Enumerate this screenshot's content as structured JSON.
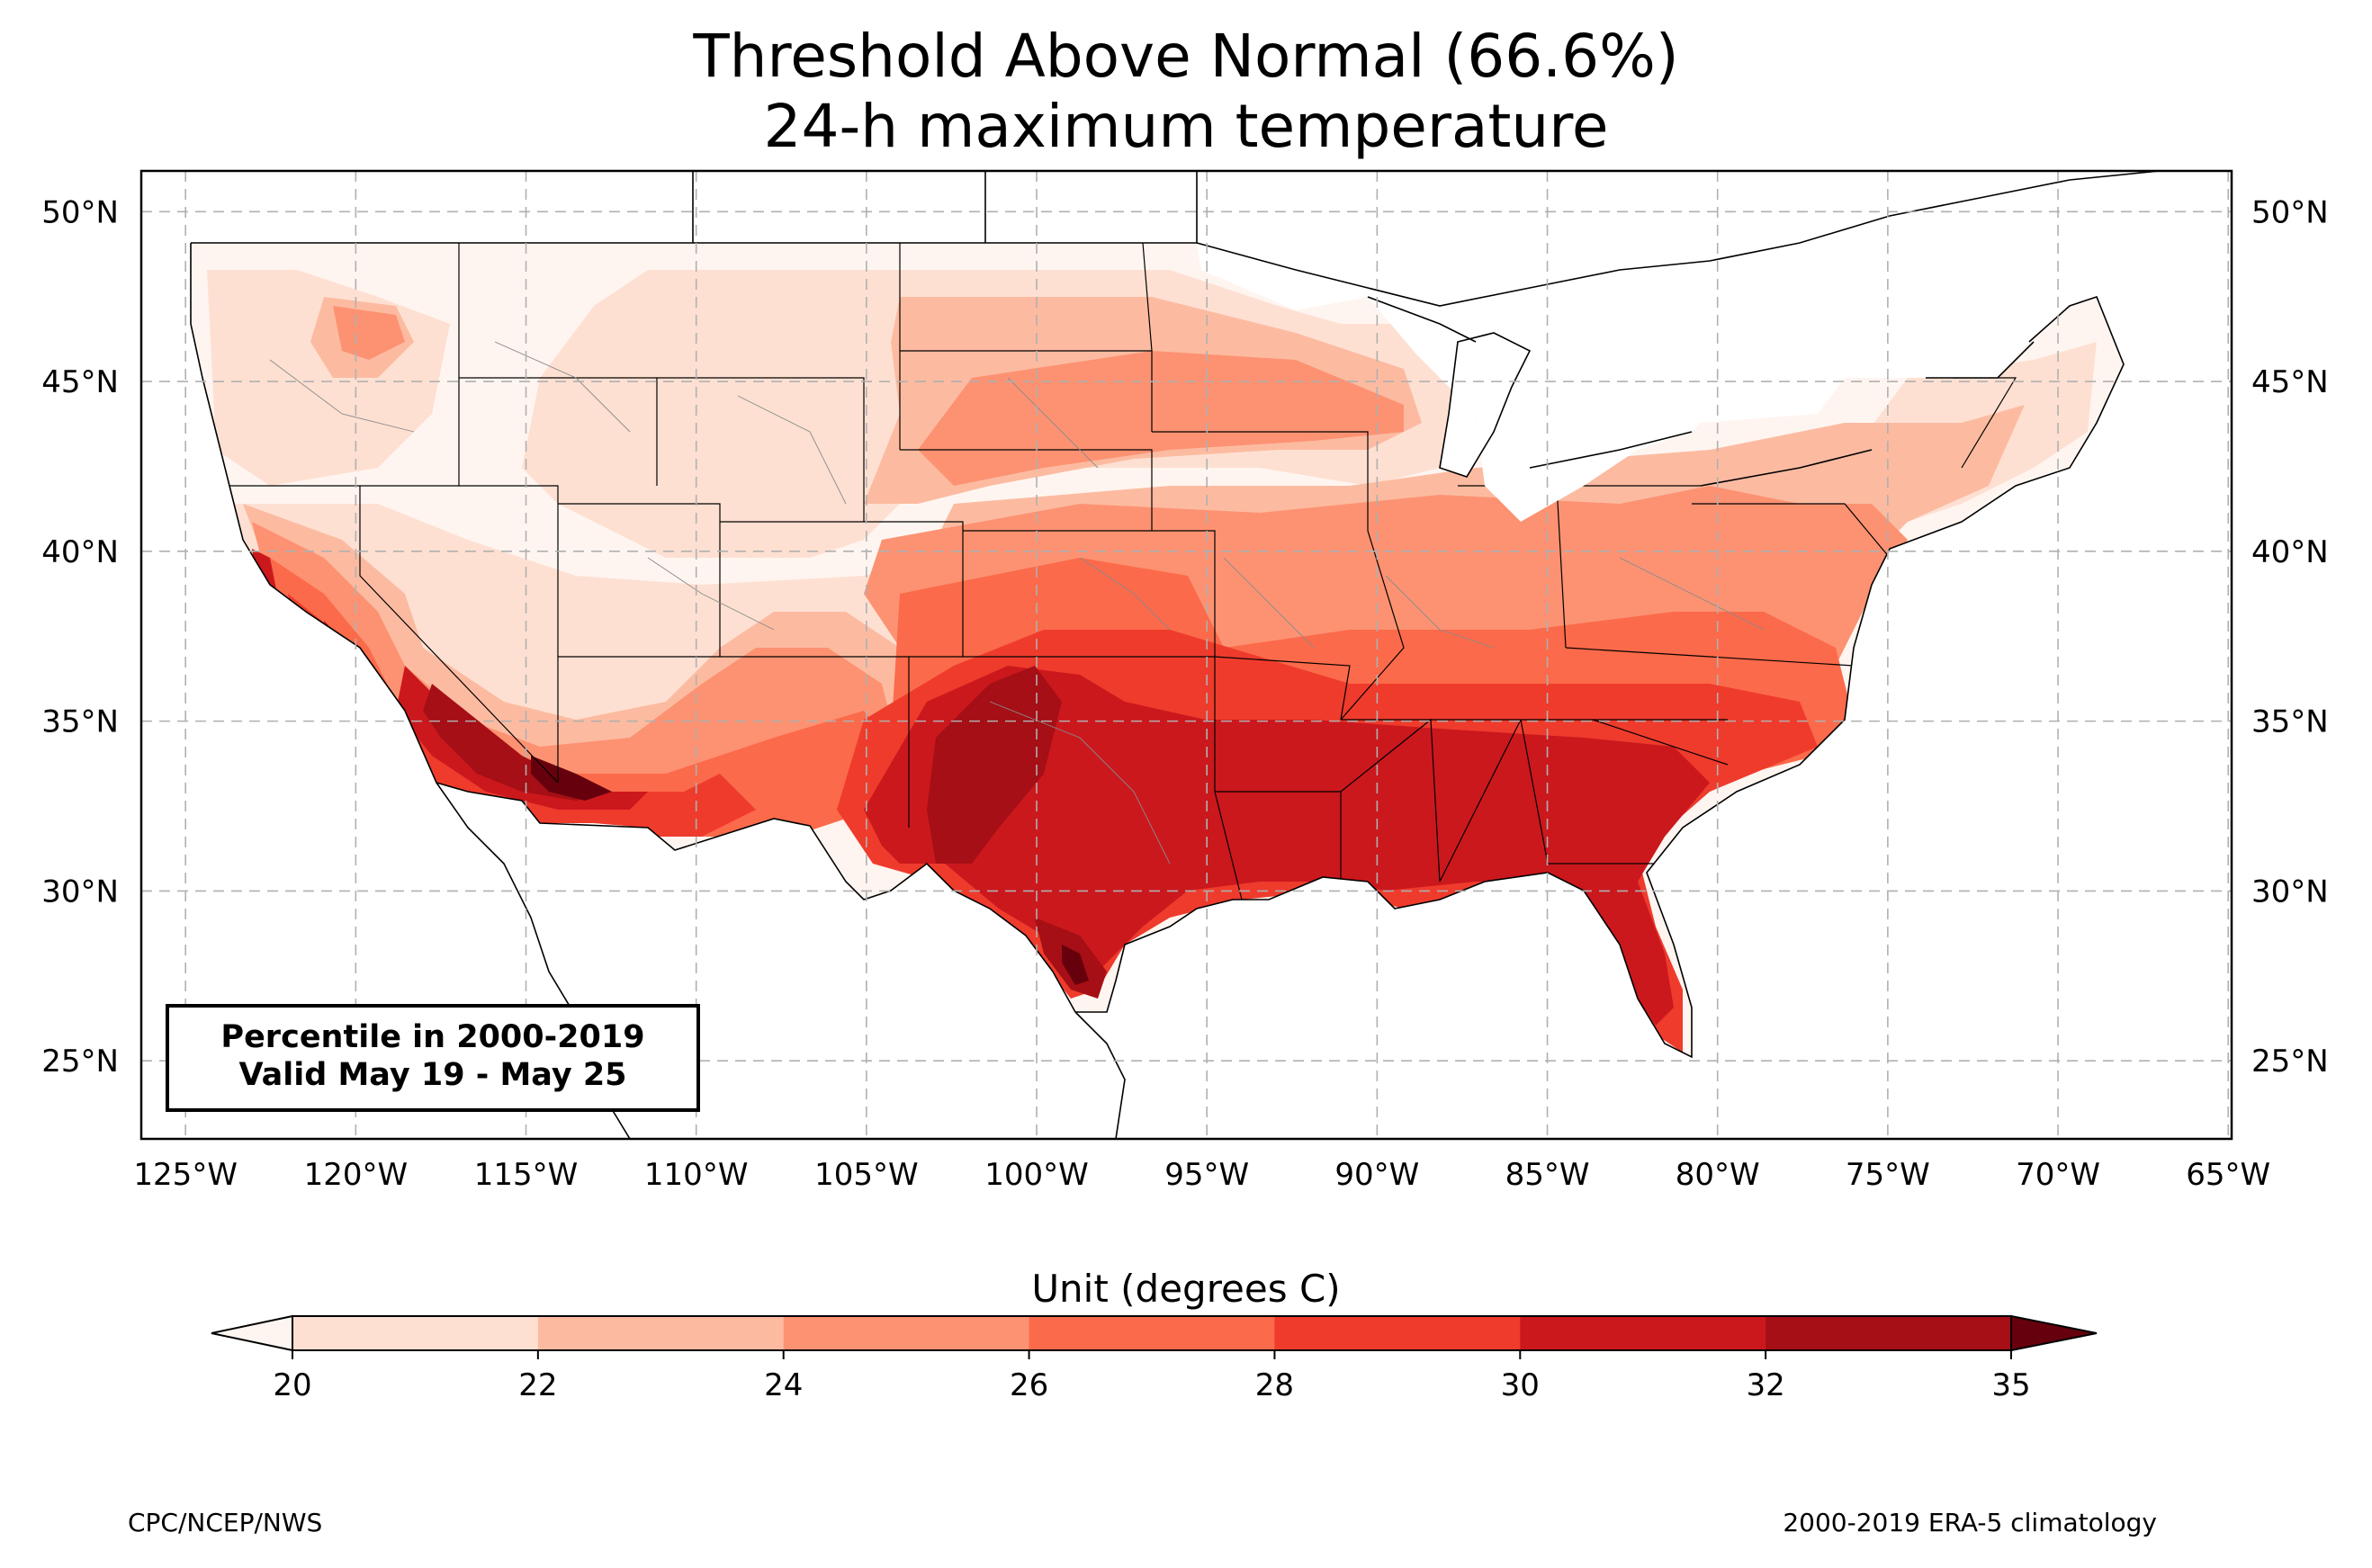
{
  "title": "Threshold Above Normal (66.6%)",
  "subtitle": "24-h maximum temperature",
  "map": {
    "projection": "PlateCarree",
    "lon_range": [
      -126.3,
      -64.9
    ],
    "lat_range": [
      22.7,
      51.2
    ],
    "lon_ticks": [
      -125,
      -120,
      -115,
      -110,
      -105,
      -100,
      -95,
      -90,
      -85,
      -80,
      -75,
      -70,
      -65
    ],
    "lon_tick_labels": [
      "125°W",
      "120°W",
      "115°W",
      "110°W",
      "105°W",
      "100°W",
      "95°W",
      "90°W",
      "85°W",
      "80°W",
      "75°W",
      "70°W",
      "65°W"
    ],
    "lat_ticks": [
      25,
      30,
      35,
      40,
      45,
      50
    ],
    "lat_tick_labels": [
      "25°N",
      "30°N",
      "35°N",
      "40°N",
      "45°N",
      "50°N"
    ],
    "gridlines": true
  },
  "infobox": {
    "line1": "Percentile in 2000-2019",
    "line2": "Valid May 19 - May 25"
  },
  "colorbar": {
    "title": "Unit (degrees C)",
    "levels": [
      20,
      22,
      24,
      26,
      28,
      30,
      32,
      35
    ],
    "labels": [
      "20",
      "22",
      "24",
      "26",
      "28",
      "30",
      "32",
      "35"
    ],
    "colors": [
      "#fee0d2",
      "#fcbba1",
      "#fc9272",
      "#fb6a4a",
      "#ef3b2c",
      "#cb181d",
      "#a50f15"
    ],
    "under_color": "#fff5f0",
    "over_color": "#67000d",
    "extend": "both"
  },
  "footer": {
    "left": "CPC/NCEP/NWS",
    "right": "2000-2019 ERA-5 climatology"
  }
}
